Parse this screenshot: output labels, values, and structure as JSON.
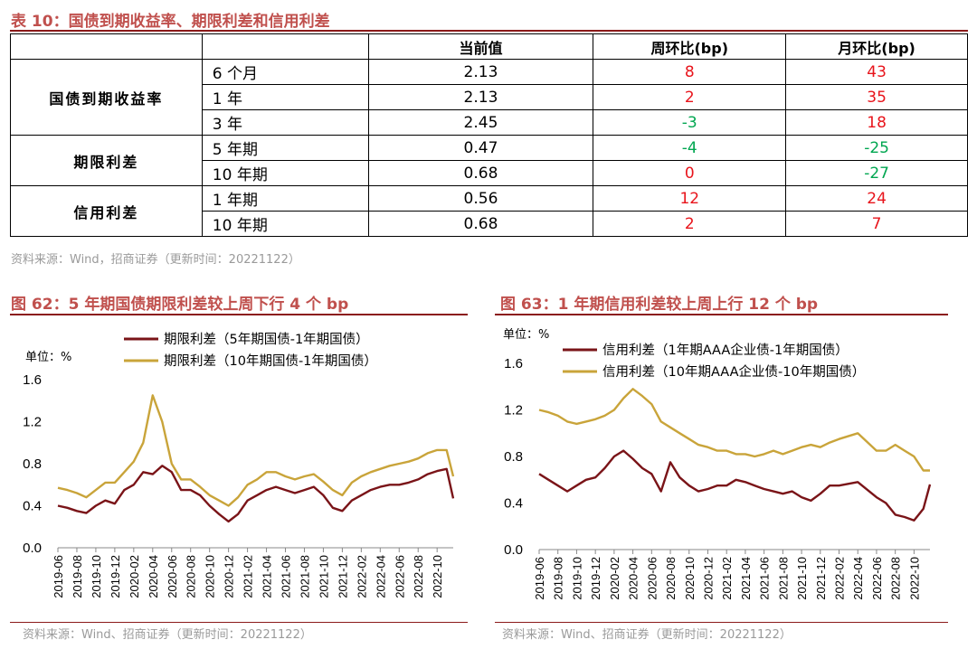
{
  "colors": {
    "title": "#c0504d",
    "rule": "#8b1a1a",
    "pos": "#e8141b",
    "neg": "#00a650",
    "zero": "#e8141b",
    "dark": "#7a1418",
    "gold": "#c9a43a",
    "source": "#9a9a9a"
  },
  "table": {
    "title": "表 10：国债到期收益率、期限利差和信用利差",
    "headers": [
      "",
      "",
      "当前值",
      "周环比(bp)",
      "月环比(bp)"
    ],
    "groups": [
      {
        "name": "国债到期收益率",
        "rows": [
          {
            "label": "6 个月",
            "value": "2.13",
            "wow": "8",
            "mom": "43"
          },
          {
            "label": "1 年",
            "value": "2.13",
            "wow": "2",
            "mom": "35"
          },
          {
            "label": "3 年",
            "value": "2.45",
            "wow": "-3",
            "mom": "18"
          }
        ]
      },
      {
        "name": "期限利差",
        "rows": [
          {
            "label": "5 年期",
            "value": "0.47",
            "wow": "-4",
            "mom": "-25"
          },
          {
            "label": "10 年期",
            "value": "0.68",
            "wow": "0",
            "mom": "-27"
          }
        ]
      },
      {
        "name": "信用利差",
        "rows": [
          {
            "label": "1 年期",
            "value": "0.56",
            "wow": "12",
            "mom": "24"
          },
          {
            "label": "10 年期",
            "value": "0.68",
            "wow": "2",
            "mom": "7"
          }
        ]
      }
    ],
    "source": "资料来源：Wind，招商证券（更新时间：20221122）"
  },
  "chart_data": [
    {
      "id": "fig62",
      "type": "line",
      "title": "图 62：5 年期国债期限利差较上周下行 4 个 bp",
      "unit_label": "单位：%",
      "ylim": [
        0,
        1.6
      ],
      "yticks": [
        "0.0",
        "0.4",
        "0.8",
        "1.2",
        "1.6"
      ],
      "x_ticks": [
        "2019-06",
        "2019-08",
        "2019-10",
        "2019-12",
        "2020-02",
        "2020-04",
        "2020-06",
        "2020-08",
        "2020-10",
        "2020-12",
        "2021-02",
        "2021-04",
        "2021-06",
        "2021-08",
        "2021-10",
        "2021-12",
        "2022-02",
        "2022-04",
        "2022-06",
        "2022-08",
        "2022-10"
      ],
      "x_months": [
        "2019-06",
        "2019-07",
        "2019-08",
        "2019-09",
        "2019-10",
        "2019-11",
        "2019-12",
        "2020-01",
        "2020-02",
        "2020-03",
        "2020-04",
        "2020-05",
        "2020-06",
        "2020-07",
        "2020-08",
        "2020-09",
        "2020-10",
        "2020-11",
        "2020-12",
        "2021-01",
        "2021-02",
        "2021-03",
        "2021-04",
        "2021-05",
        "2021-06",
        "2021-07",
        "2021-08",
        "2021-09",
        "2021-10",
        "2021-11",
        "2021-12",
        "2022-01",
        "2022-02",
        "2022-03",
        "2022-04",
        "2022-05",
        "2022-06",
        "2022-07",
        "2022-08",
        "2022-09",
        "2022-10",
        "2022-11",
        "2022-11-22"
      ],
      "series": [
        {
          "name": "期限利差（5年期国债-1年期国债）",
          "color": "#7a1418",
          "values": [
            0.4,
            0.38,
            0.35,
            0.33,
            0.4,
            0.45,
            0.42,
            0.55,
            0.6,
            0.72,
            0.7,
            0.78,
            0.72,
            0.55,
            0.55,
            0.5,
            0.4,
            0.32,
            0.25,
            0.32,
            0.45,
            0.5,
            0.55,
            0.58,
            0.55,
            0.52,
            0.55,
            0.58,
            0.5,
            0.38,
            0.35,
            0.45,
            0.5,
            0.55,
            0.58,
            0.6,
            0.6,
            0.62,
            0.65,
            0.7,
            0.73,
            0.75,
            0.47
          ]
        },
        {
          "name": "期限利差（10年期国债-1年期国债）",
          "color": "#c9a43a",
          "values": [
            0.57,
            0.55,
            0.52,
            0.48,
            0.55,
            0.62,
            0.62,
            0.72,
            0.82,
            1.0,
            1.45,
            1.2,
            0.8,
            0.65,
            0.65,
            0.58,
            0.5,
            0.45,
            0.4,
            0.48,
            0.6,
            0.65,
            0.72,
            0.72,
            0.68,
            0.65,
            0.68,
            0.7,
            0.63,
            0.55,
            0.5,
            0.62,
            0.68,
            0.72,
            0.75,
            0.78,
            0.8,
            0.82,
            0.85,
            0.9,
            0.93,
            0.93,
            0.68
          ]
        }
      ],
      "source": "资料来源：Wind、招商证券（更新时间：20221122）"
    },
    {
      "id": "fig63",
      "type": "line",
      "title": "图 63：1 年期信用利差较上周上行 12 个 bp",
      "unit_label": "单位：%",
      "ylim": [
        0,
        1.6
      ],
      "yticks": [
        "0.0",
        "0.4",
        "0.8",
        "1.2",
        "1.6"
      ],
      "x_ticks": [
        "2019-06",
        "2019-08",
        "2019-10",
        "2019-12",
        "2020-02",
        "2020-04",
        "2020-06",
        "2020-08",
        "2020-10",
        "2020-12",
        "2021-02",
        "2021-04",
        "2021-06",
        "2021-08",
        "2021-10",
        "2021-12",
        "2022-02",
        "2022-04",
        "2022-06",
        "2022-08",
        "2022-10"
      ],
      "x_months": [
        "2019-06",
        "2019-07",
        "2019-08",
        "2019-09",
        "2019-10",
        "2019-11",
        "2019-12",
        "2020-01",
        "2020-02",
        "2020-03",
        "2020-04",
        "2020-05",
        "2020-06",
        "2020-07",
        "2020-08",
        "2020-09",
        "2020-10",
        "2020-11",
        "2020-12",
        "2021-01",
        "2021-02",
        "2021-03",
        "2021-04",
        "2021-05",
        "2021-06",
        "2021-07",
        "2021-08",
        "2021-09",
        "2021-10",
        "2021-11",
        "2021-12",
        "2022-01",
        "2022-02",
        "2022-04",
        "2022-06",
        "2022-07",
        "2022-08",
        "2022-09",
        "2022-10",
        "2022-11",
        "2022-11-22"
      ],
      "series": [
        {
          "name": "信用利差（1年期AAA企业债-1年期国债）",
          "color": "#7a1418",
          "values": [
            0.65,
            0.6,
            0.55,
            0.5,
            0.55,
            0.6,
            0.62,
            0.7,
            0.8,
            0.85,
            0.78,
            0.7,
            0.65,
            0.5,
            0.75,
            0.62,
            0.55,
            0.5,
            0.52,
            0.55,
            0.55,
            0.6,
            0.58,
            0.55,
            0.52,
            0.5,
            0.48,
            0.5,
            0.45,
            0.42,
            0.48,
            0.55,
            0.55,
            0.58,
            0.45,
            0.4,
            0.3,
            0.28,
            0.25,
            0.35,
            0.56
          ]
        },
        {
          "name": "信用利差（10年期AAA企业债-10年期国债）",
          "color": "#c9a43a",
          "values": [
            1.2,
            1.18,
            1.15,
            1.1,
            1.08,
            1.1,
            1.12,
            1.15,
            1.2,
            1.3,
            1.38,
            1.32,
            1.25,
            1.1,
            1.05,
            1.0,
            0.95,
            0.9,
            0.88,
            0.85,
            0.85,
            0.82,
            0.82,
            0.8,
            0.82,
            0.85,
            0.82,
            0.85,
            0.88,
            0.9,
            0.88,
            0.92,
            0.95,
            1.0,
            0.85,
            0.85,
            0.9,
            0.85,
            0.8,
            0.68,
            0.68
          ]
        }
      ],
      "source": "资料来源：Wind、招商证券（更新时间：20221122）"
    }
  ]
}
